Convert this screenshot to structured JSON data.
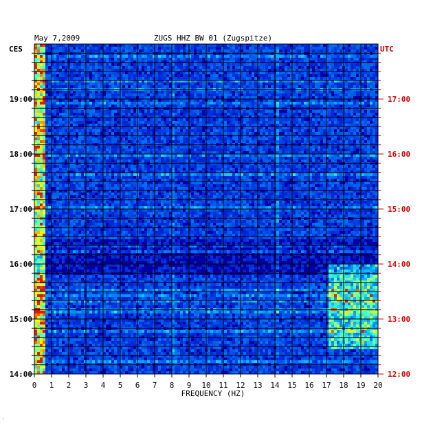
{
  "header": {
    "date": "May 7,2009",
    "station": "ZUGS HHZ BW 01 (Zugspitze)",
    "left_zone": "CES",
    "right_zone": "UTC"
  },
  "colors": {
    "left_text": "#000000",
    "right_text": "#cc0000",
    "spectrogram_low": "#00008b",
    "spectrogram_mid": "#00c8ff",
    "spectrogram_high": "#ffff00",
    "spectrogram_peak": "#ff0000"
  },
  "footer_mark": "·",
  "chart_data": {
    "type": "heatmap",
    "xlabel": "FREQUENCY (HZ)",
    "xlim": [
      0,
      20
    ],
    "x_ticks": [
      "0",
      "1",
      "2",
      "3",
      "4",
      "5",
      "6",
      "7",
      "8",
      "9",
      "10",
      "11",
      "12",
      "13",
      "14",
      "15",
      "16",
      "17",
      "18",
      "19",
      "20"
    ],
    "left_ylim": [
      "14:00",
      "19:50"
    ],
    "left_ticks": [
      "14:00",
      "15:00",
      "16:00",
      "17:00",
      "18:00",
      "19:00"
    ],
    "right_ticks": [
      "12:00",
      "13:00",
      "14:00",
      "15:00",
      "16:00",
      "17:00"
    ],
    "grid": true,
    "features": {
      "strong_low_frequency_band_hz": [
        0,
        0.6
      ],
      "activity_band_hz": [
        17,
        20
      ],
      "activity_band_time_ces": [
        "14:30",
        "16:00"
      ],
      "line_14_hz": 14,
      "line_8_hz": 8
    }
  }
}
